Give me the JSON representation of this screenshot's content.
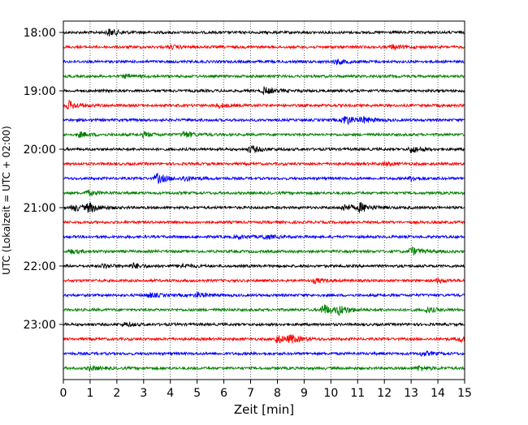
{
  "chart_data": {
    "type": "line",
    "title": "",
    "xlabel": "Zeit  [min]",
    "ylabel": "UTC (Lokalzeit = UTC + 02:00)",
    "xlim": [
      0,
      15
    ],
    "x_ticks": [
      "0",
      "1",
      "2",
      "3",
      "4",
      "5",
      "6",
      "7",
      "8",
      "9",
      "10",
      "11",
      "12",
      "13",
      "14",
      "15"
    ],
    "y_tick_labels": [
      "18:00",
      "19:00",
      "20:00",
      "21:00",
      "22:00",
      "23:00"
    ],
    "grid": "vertical dotted",
    "trace_colors": [
      "#000000",
      "#ff0000",
      "#0000ff",
      "#008000"
    ],
    "trace_minutes": 15,
    "trace_start_times": [
      "18:00",
      "18:15",
      "18:30",
      "18:45",
      "19:00",
      "19:15",
      "19:30",
      "19:45",
      "20:00",
      "20:15",
      "20:30",
      "20:45",
      "21:00",
      "21:15",
      "21:30",
      "21:45",
      "22:00",
      "22:15",
      "22:30",
      "22:45",
      "23:00",
      "23:15",
      "23:30",
      "23:45"
    ],
    "events": [
      [
        {
          "t": 1.7,
          "a": 4
        }
      ],
      [
        {
          "t": 4.0,
          "a": 2
        },
        {
          "t": 12.3,
          "a": 2.5
        }
      ],
      [
        {
          "t": 10.2,
          "a": 3
        }
      ],
      [
        {
          "t": 2.3,
          "a": 2
        }
      ],
      [
        {
          "t": 7.5,
          "a": 4
        }
      ],
      [
        {
          "t": 0.2,
          "a": 5
        },
        {
          "t": 5.8,
          "a": 2.5
        }
      ],
      [
        {
          "t": 10.5,
          "a": 6
        },
        {
          "t": 11.2,
          "a": 3
        }
      ],
      [
        {
          "t": 0.6,
          "a": 3
        },
        {
          "t": 3.0,
          "a": 2.5
        },
        {
          "t": 4.5,
          "a": 4
        }
      ],
      [
        {
          "t": 7.0,
          "a": 4
        },
        {
          "t": 13.0,
          "a": 4
        }
      ],
      [
        {
          "t": 12.0,
          "a": 2
        }
      ],
      [
        {
          "t": 3.5,
          "a": 6
        },
        {
          "t": 4.5,
          "a": 3
        },
        {
          "t": 13.0,
          "a": 2.5
        }
      ],
      [
        {
          "t": 0.9,
          "a": 2.5
        }
      ],
      [
        {
          "t": 0.4,
          "a": 4
        },
        {
          "t": 0.95,
          "a": 5.5
        },
        {
          "t": 10.5,
          "a": 4
        },
        {
          "t": 11.1,
          "a": 5
        }
      ],
      [],
      [
        {
          "t": 6.5,
          "a": 2
        },
        {
          "t": 7.5,
          "a": 2.5
        }
      ],
      [
        {
          "t": 0.3,
          "a": 2
        },
        {
          "t": 13.0,
          "a": 5
        }
      ],
      [
        {
          "t": 1.5,
          "a": 2.5
        },
        {
          "t": 2.6,
          "a": 3
        },
        {
          "t": 4.4,
          "a": 2.5
        }
      ],
      [
        {
          "t": 9.4,
          "a": 2.5
        },
        {
          "t": 14.0,
          "a": 2
        }
      ],
      [
        {
          "t": 3.2,
          "a": 2.5
        },
        {
          "t": 5.0,
          "a": 3
        }
      ],
      [
        {
          "t": 9.7,
          "a": 7
        },
        {
          "t": 10.3,
          "a": 5
        },
        {
          "t": 13.6,
          "a": 3
        }
      ],
      [
        {
          "t": 2.3,
          "a": 2
        }
      ],
      [
        {
          "t": 8.0,
          "a": 5
        },
        {
          "t": 8.5,
          "a": 4
        },
        {
          "t": 14.8,
          "a": 3
        }
      ],
      [
        {
          "t": 13.4,
          "a": 2.5
        }
      ],
      [
        {
          "t": 1.0,
          "a": 2.5
        },
        {
          "t": 13.3,
          "a": 3
        }
      ]
    ]
  }
}
